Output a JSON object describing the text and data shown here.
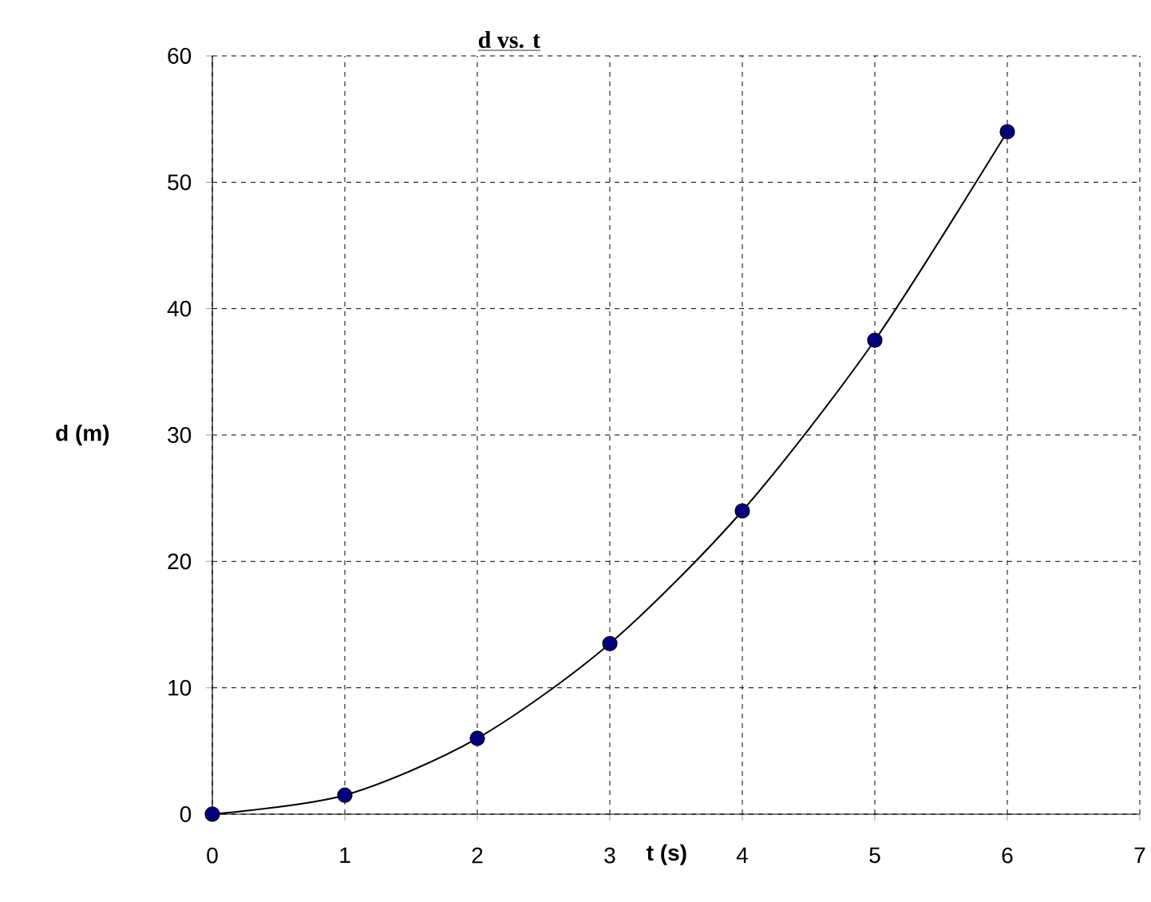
{
  "chart_data": {
    "type": "line",
    "title": "d vs. t",
    "xlabel": "t (s)",
    "ylabel": "d (m)",
    "x": [
      0,
      1,
      2,
      3,
      4,
      5,
      6
    ],
    "series": [
      {
        "color": "#000080",
        "values": [
          0,
          1.5,
          6,
          13.5,
          24,
          37.5,
          54
        ]
      }
    ],
    "xlim": [
      0,
      7
    ],
    "xticks": [
      0,
      1,
      2,
      3,
      4,
      5,
      6,
      7
    ],
    "ylim": [
      0,
      60
    ],
    "yticks": [
      0,
      10,
      20,
      30,
      40,
      50,
      60
    ],
    "grid": true,
    "marker": "circle",
    "line_style": "solid"
  }
}
